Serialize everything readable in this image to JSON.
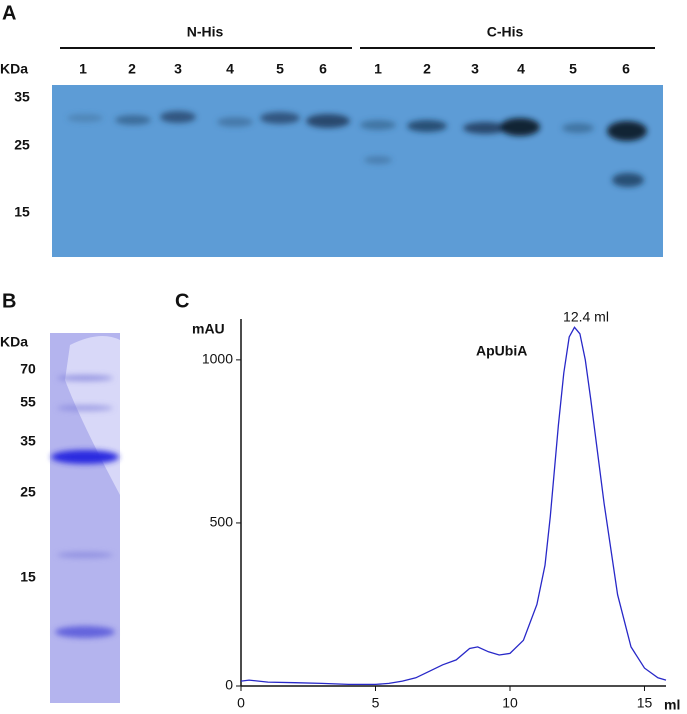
{
  "panel_a": {
    "letter": "A",
    "unit": "KDa",
    "groups": [
      "N-His",
      "C-His"
    ],
    "lanes": [
      [
        "1",
        "2",
        "3",
        "4",
        "5",
        "6"
      ],
      [
        "1",
        "2",
        "3",
        "4",
        "5",
        "6"
      ]
    ],
    "markers": [
      "35",
      "25",
      "15"
    ]
  },
  "panel_b": {
    "letter": "B",
    "unit": "KDa",
    "markers": [
      "70",
      "55",
      "35",
      "25",
      "15"
    ]
  },
  "chart_data": {
    "type": "line",
    "panel_letter": "C",
    "y_label": "mAU",
    "x_label": "ml",
    "annotations": [
      "12.4 ml",
      "ApUbiA"
    ],
    "color": "#2828c8",
    "x": [
      0,
      0.3,
      1,
      2,
      3,
      4,
      5,
      5.5,
      6,
      6.5,
      7,
      7.5,
      8,
      8.5,
      8.8,
      9.2,
      9.6,
      10,
      10.5,
      11,
      11.3,
      11.5,
      11.8,
      12,
      12.2,
      12.4,
      12.6,
      12.8,
      13,
      13.5,
      14,
      14.5,
      15,
      15.5,
      15.8
    ],
    "values": [
      15,
      18,
      12,
      10,
      8,
      5,
      5,
      8,
      15,
      25,
      45,
      65,
      80,
      115,
      120,
      105,
      95,
      100,
      140,
      250,
      370,
      520,
      800,
      960,
      1070,
      1100,
      1080,
      1000,
      880,
      560,
      280,
      120,
      55,
      25,
      18
    ],
    "xlim": [
      0,
      15.8
    ],
    "ylim": [
      0,
      1110
    ],
    "xticks": [
      0,
      5,
      10,
      15
    ],
    "yticks": [
      0,
      500,
      1000
    ]
  }
}
